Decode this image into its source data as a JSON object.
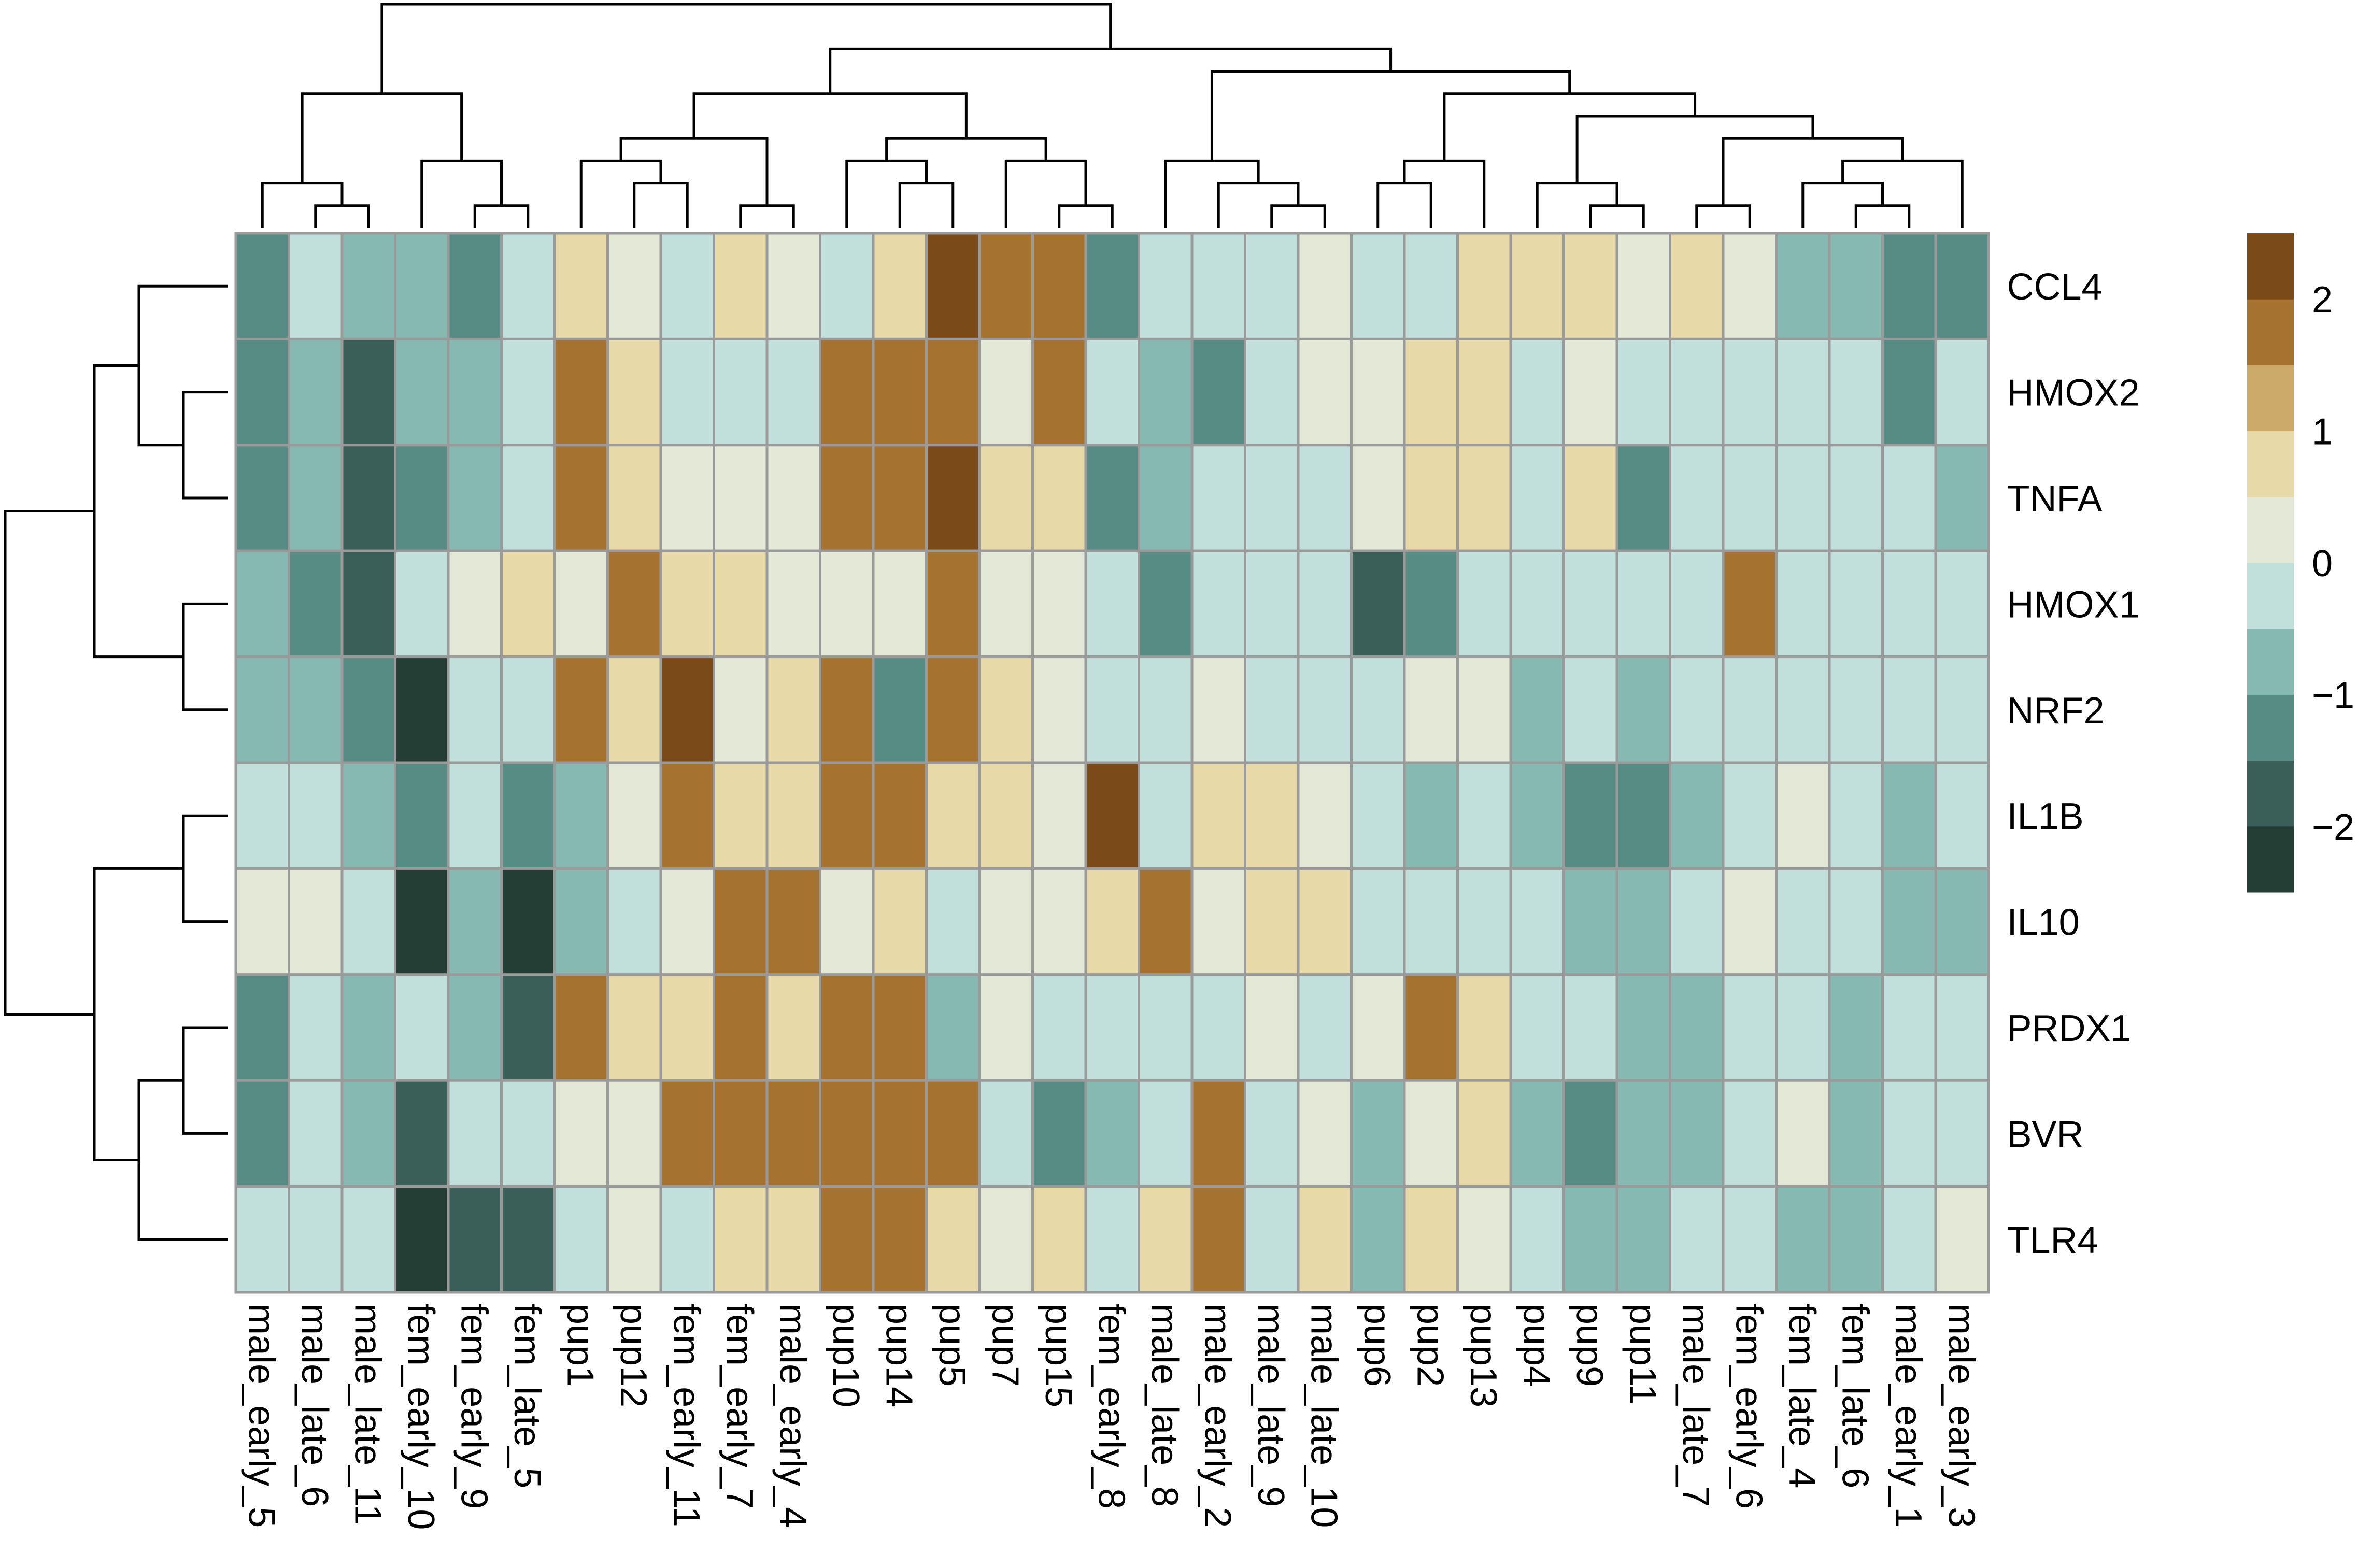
{
  "chart_data": {
    "type": "heatmap",
    "title": "",
    "rows": [
      "CCL4",
      "HMOX2",
      "TNFA",
      "HMOX1",
      "NRF2",
      "IL1B",
      "IL10",
      "PRDX1",
      "BVR",
      "TLR4"
    ],
    "columns": [
      "male_early_5",
      "male_late_6",
      "male_late_11",
      "fem_early_10",
      "fem_early_9",
      "fem_late_5",
      "pup1",
      "pup12",
      "fem_early_11",
      "fem_early_7",
      "male_early_4",
      "pup10",
      "pup14",
      "pup5",
      "pup7",
      "pup15",
      "fem_early_8",
      "male_late_8",
      "male_early_2",
      "male_late_9",
      "male_late_10",
      "pup6",
      "pup2",
      "pup13",
      "pup4",
      "pup9",
      "pup11",
      "male_late_7",
      "fem_early_6",
      "fem_late_4",
      "fem_late_6",
      "male_early_1",
      "male_early_3"
    ],
    "values": [
      [
        -1.25,
        -0.25,
        -0.75,
        -0.75,
        -1.25,
        -0.25,
        0.75,
        0.25,
        -0.25,
        0.75,
        0.25,
        -0.25,
        0.75,
        2.25,
        1.75,
        1.75,
        -1.25,
        -0.25,
        -0.25,
        -0.25,
        0.25,
        -0.25,
        -0.25,
        0.75,
        0.75,
        0.75,
        0.25,
        0.75,
        0.25,
        -0.75,
        -0.75,
        -1.25,
        -1.25
      ],
      [
        -1.25,
        -0.75,
        -1.75,
        -0.75,
        -0.75,
        -0.25,
        1.75,
        0.75,
        -0.25,
        -0.25,
        -0.25,
        1.75,
        1.75,
        1.75,
        0.25,
        1.75,
        -0.25,
        -0.75,
        -1.25,
        -0.25,
        0.25,
        0.25,
        0.75,
        0.75,
        -0.25,
        0.25,
        -0.25,
        -0.25,
        -0.25,
        -0.25,
        -0.25,
        -1.25,
        -0.25
      ],
      [
        -1.25,
        -0.75,
        -1.75,
        -1.25,
        -0.75,
        -0.25,
        1.75,
        0.75,
        0.25,
        0.25,
        0.25,
        1.75,
        1.75,
        2.25,
        0.75,
        0.75,
        -1.25,
        -0.75,
        -0.25,
        -0.25,
        -0.25,
        0.25,
        0.75,
        0.75,
        -0.25,
        0.75,
        -1.25,
        -0.25,
        -0.25,
        -0.25,
        -0.25,
        -0.25,
        -0.75
      ],
      [
        -0.75,
        -1.25,
        -1.75,
        -0.25,
        0.25,
        0.75,
        0.25,
        1.75,
        0.75,
        0.75,
        0.25,
        0.25,
        0.25,
        1.75,
        0.25,
        0.25,
        -0.25,
        -1.25,
        -0.25,
        -0.25,
        -0.25,
        -1.75,
        -1.25,
        -0.25,
        -0.25,
        -0.25,
        -0.25,
        -0.25,
        1.75,
        -0.25,
        -0.25,
        -0.25,
        -0.25
      ],
      [
        -0.75,
        -0.75,
        -1.25,
        -2.25,
        -0.25,
        -0.25,
        1.75,
        0.75,
        2.25,
        0.25,
        0.75,
        1.75,
        -1.25,
        1.75,
        0.75,
        0.25,
        -0.25,
        -0.25,
        0.25,
        -0.25,
        -0.25,
        -0.25,
        0.25,
        0.25,
        -0.75,
        -0.25,
        -0.75,
        -0.25,
        -0.25,
        -0.25,
        -0.25,
        -0.25,
        -0.25
      ],
      [
        -0.25,
        -0.25,
        -0.75,
        -1.25,
        -0.25,
        -1.25,
        -0.75,
        0.25,
        1.75,
        0.75,
        0.75,
        1.75,
        1.75,
        0.75,
        0.75,
        0.25,
        2.25,
        -0.25,
        0.75,
        0.75,
        0.25,
        -0.25,
        -0.75,
        -0.25,
        -0.75,
        -1.25,
        -1.25,
        -0.75,
        -0.25,
        0.25,
        -0.25,
        -0.75,
        -0.25
      ],
      [
        0.25,
        0.25,
        -0.25,
        -2.25,
        -0.75,
        -2.25,
        -0.75,
        -0.25,
        0.25,
        1.75,
        1.75,
        0.25,
        0.75,
        -0.25,
        0.25,
        0.25,
        0.75,
        1.75,
        0.25,
        0.75,
        0.75,
        -0.25,
        -0.25,
        -0.25,
        -0.25,
        -0.75,
        -0.75,
        -0.25,
        0.25,
        -0.25,
        -0.25,
        -0.75,
        -0.75
      ],
      [
        -1.25,
        -0.25,
        -0.75,
        -0.25,
        -0.75,
        -1.75,
        1.75,
        0.75,
        0.75,
        1.75,
        0.75,
        1.75,
        1.75,
        -0.75,
        0.25,
        -0.25,
        -0.25,
        -0.25,
        -0.25,
        0.25,
        -0.25,
        0.25,
        1.75,
        0.75,
        -0.25,
        -0.25,
        -0.75,
        -0.75,
        -0.25,
        -0.25,
        -0.75,
        -0.25,
        -0.25
      ],
      [
        -1.25,
        -0.25,
        -0.75,
        -1.75,
        -0.25,
        -0.25,
        0.25,
        0.25,
        1.75,
        1.75,
        1.75,
        1.75,
        1.75,
        1.75,
        -0.25,
        -1.25,
        -0.75,
        -0.25,
        1.75,
        -0.25,
        0.25,
        -0.75,
        0.25,
        0.75,
        -0.75,
        -1.25,
        -0.75,
        -0.75,
        -0.25,
        0.25,
        -0.75,
        -0.25,
        -0.25
      ],
      [
        -0.25,
        -0.25,
        -0.25,
        -2.25,
        -1.75,
        -1.75,
        -0.25,
        0.25,
        -0.25,
        0.75,
        0.75,
        1.75,
        1.75,
        0.75,
        0.25,
        0.75,
        -0.25,
        0.75,
        1.75,
        -0.25,
        0.75,
        -0.75,
        0.75,
        0.25,
        -0.25,
        -0.75,
        -0.75,
        -0.25,
        -0.25,
        -0.75,
        -0.75,
        -0.25,
        0.25
      ]
    ],
    "color_scale": {
      "breaks": [
        -2.5,
        -2,
        -1.5,
        -1,
        -0.5,
        0,
        0.5,
        1,
        1.5,
        2,
        2.5
      ],
      "colors": [
        "#243d35",
        "#3a5e58",
        "#578c84",
        "#85b9b1",
        "#c2e0db",
        "#e3e8d7",
        "#e8d9a9",
        "#ccaa6a",
        "#a6722f",
        "#7a4a18",
        "#4a3210"
      ]
    },
    "legend": {
      "ticks": [
        2,
        1,
        0,
        -1,
        -2
      ],
      "tick_labels": [
        "2",
        "1",
        "0",
        "−1",
        "−2"
      ],
      "position": "right"
    },
    "col_dendrogram": {
      "merges": [
        [
          1,
          2
        ],
        [
          0,
          "m0"
        ],
        [
          4,
          5
        ],
        [
          3,
          "m2"
        ],
        [
          "m1",
          "m3"
        ],
        [
          7,
          8
        ],
        [
          9,
          10
        ],
        [
          6,
          "m5"
        ],
        [
          "m6",
          "m7"
        ],
        [
          12,
          13
        ],
        [
          11,
          "m9"
        ],
        [
          15,
          16
        ],
        [
          14,
          "m11"
        ],
        [
          "m10",
          "m12"
        ],
        [
          "m8",
          "m13"
        ],
        [
          19,
          20
        ],
        [
          18,
          "m15"
        ],
        [
          17,
          "m16"
        ],
        [
          21,
          22
        ],
        [
          23,
          "m18"
        ],
        [
          25,
          26
        ],
        [
          24,
          "m20"
        ],
        [
          27,
          28
        ],
        [
          30,
          31
        ],
        [
          29,
          "m23"
        ],
        [
          32,
          "m24"
        ],
        [
          "m22",
          "m25"
        ],
        [
          "m21",
          "m26"
        ],
        [
          "m19",
          "m27"
        ],
        [
          "m17",
          "m28"
        ],
        [
          "m14",
          "m29"
        ],
        [
          "m4",
          "m30"
        ]
      ],
      "heights": [
        1,
        2,
        1,
        3,
        6,
        2,
        1,
        3,
        4,
        2,
        3,
        1,
        3,
        4,
        6,
        1,
        2,
        3,
        2,
        3,
        1,
        2,
        1,
        1,
        2,
        3,
        4,
        5,
        6,
        7,
        8,
        10
      ]
    },
    "row_dendrogram": {
      "merges": [
        [
          1,
          2
        ],
        [
          0,
          "m0"
        ],
        [
          3,
          4
        ],
        [
          "m1",
          "m2"
        ],
        [
          5,
          6
        ],
        [
          7,
          8
        ],
        [
          9,
          "m5"
        ],
        [
          "m4",
          "m6"
        ],
        [
          "m3",
          "m7"
        ]
      ],
      "heights": [
        1,
        2,
        1,
        3,
        1,
        1,
        2,
        3,
        5
      ]
    }
  }
}
